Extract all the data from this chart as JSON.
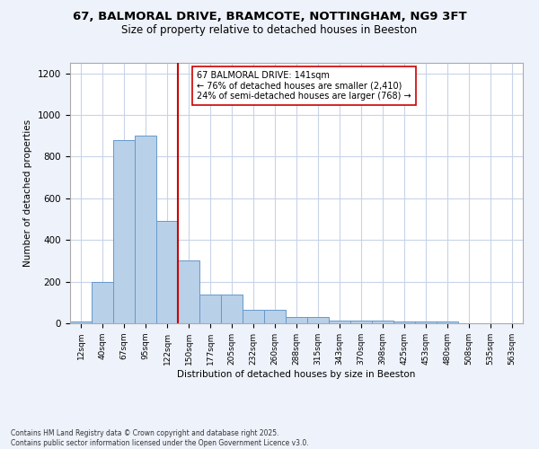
{
  "title1": "67, BALMORAL DRIVE, BRAMCOTE, NOTTINGHAM, NG9 3FT",
  "title2": "Size of property relative to detached houses in Beeston",
  "xlabel": "Distribution of detached houses by size in Beeston",
  "ylabel": "Number of detached properties",
  "categories": [
    "12sqm",
    "40sqm",
    "67sqm",
    "95sqm",
    "122sqm",
    "150sqm",
    "177sqm",
    "205sqm",
    "232sqm",
    "260sqm",
    "288sqm",
    "315sqm",
    "343sqm",
    "370sqm",
    "398sqm",
    "425sqm",
    "453sqm",
    "480sqm",
    "508sqm",
    "535sqm",
    "563sqm"
  ],
  "values": [
    10,
    200,
    880,
    900,
    490,
    300,
    140,
    140,
    65,
    65,
    30,
    30,
    15,
    15,
    15,
    8,
    8,
    8,
    2,
    2,
    2
  ],
  "bar_color": "#b8d0e8",
  "bar_edge_color": "#6699cc",
  "vline_x": 4.5,
  "vline_color": "#cc0000",
  "annotation_text": "67 BALMORAL DRIVE: 141sqm\n← 76% of detached houses are smaller (2,410)\n24% of semi-detached houses are larger (768) →",
  "annotation_box_color": "#ffffff",
  "annotation_box_edge": "#cc0000",
  "ylim": [
    0,
    1250
  ],
  "yticks": [
    0,
    200,
    400,
    600,
    800,
    1000,
    1200
  ],
  "footnote": "Contains HM Land Registry data © Crown copyright and database right 2025.\nContains public sector information licensed under the Open Government Licence v3.0.",
  "background_color": "#eef2fa",
  "plot_bg_color": "#ffffff",
  "grid_color": "#c8d4e8"
}
